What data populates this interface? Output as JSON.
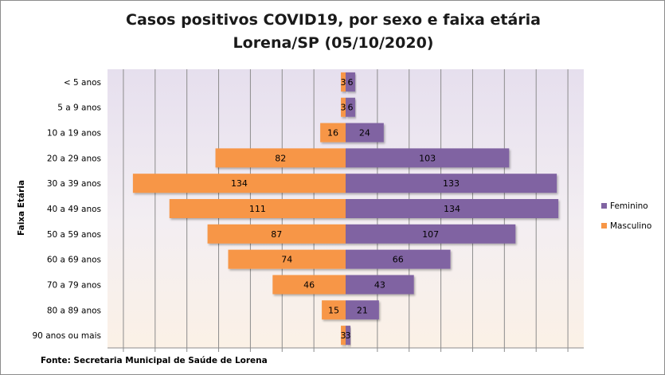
{
  "chart_data": {
    "type": "bar",
    "orientation": "horizontal",
    "title_line1": "Casos positivos COVID19, por sexo e faixa etária",
    "title_line2": "Lorena/SP (05/10/2020)",
    "ylabel": "Faixa Etária",
    "xlabel": "",
    "categories": [
      "< 5 anos",
      "5 a 9 anos",
      "10 a 19 anos",
      "20 a 29 anos",
      "30 a 39 anos",
      "40 a 49 anos",
      "50 a 59 anos",
      "60 a 69 anos ",
      "70 a 79 anos",
      "80 a 89 anos",
      "90 anos ou mais"
    ],
    "series": [
      {
        "name": "Feminino",
        "color": "#8064a2",
        "values": [
          6,
          6,
          24,
          103,
          133,
          134,
          107,
          66,
          43,
          21,
          3
        ]
      },
      {
        "name": "Masculino",
        "color": "#f79646",
        "values": [
          3,
          3,
          16,
          82,
          134,
          111,
          87,
          74,
          46,
          15,
          3
        ]
      }
    ],
    "xlim": [
      -150,
      150
    ],
    "grid": true,
    "legend_position": "right",
    "source": "Fonte: Secretaria Municipal  de Saúde de Lorena"
  }
}
